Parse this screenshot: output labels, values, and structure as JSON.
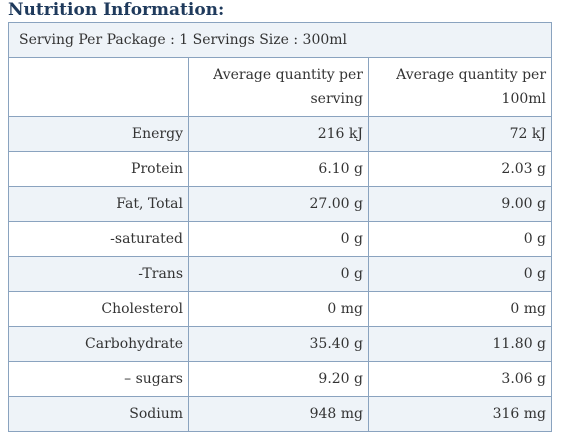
{
  "title": "Nutrition Information:",
  "serving_line": "Serving Per Package : 1 Servings Size : 300ml",
  "headers": {
    "per_serving": "Average quantity per serving",
    "per_100ml": "Average quantity per 100ml"
  },
  "rows": [
    {
      "name": "Energy",
      "per_serving": "216 kJ",
      "per_100ml": "72 kJ"
    },
    {
      "name": "Protein",
      "per_serving": "6.10 g",
      "per_100ml": "2.03 g"
    },
    {
      "name": "Fat, Total",
      "per_serving": "27.00 g",
      "per_100ml": "9.00 g"
    },
    {
      "name": "-saturated",
      "per_serving": "0 g",
      "per_100ml": "0 g"
    },
    {
      "name": "-Trans",
      "per_serving": "0 g",
      "per_100ml": "0 g"
    },
    {
      "name": "Cholesterol",
      "per_serving": "0 mg",
      "per_100ml": "0 mg"
    },
    {
      "name": "Carbohydrate",
      "per_serving": "35.40 g",
      "per_100ml": "11.80 g"
    },
    {
      "name": "– sugars",
      "per_serving": "9.20 g",
      "per_100ml": "3.06 g"
    },
    {
      "name": "Sodium",
      "per_serving": "948 mg",
      "per_100ml": "316 mg"
    }
  ]
}
